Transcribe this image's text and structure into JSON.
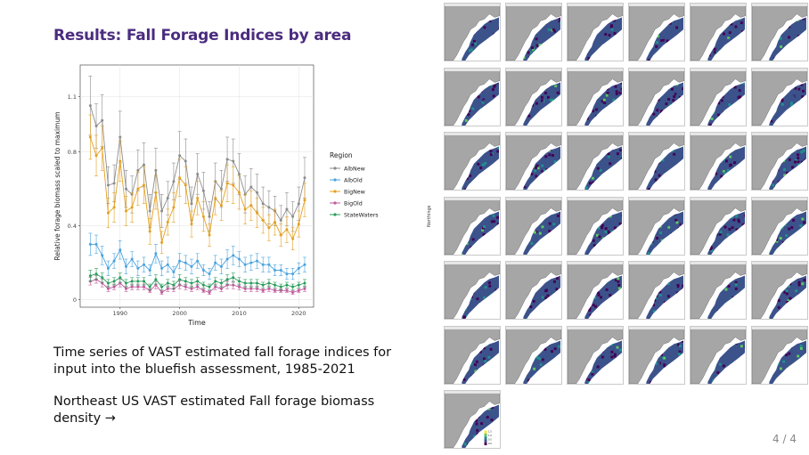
{
  "slide": {
    "title": "Results: Fall Forage Indices by area",
    "description_1": "Time series of VAST estimated fall forage indices for input into the bluefish assessment, 1985-2021",
    "description_2": "Northeast US VAST estimated Fall forage biomass density →",
    "page_indicator": "4 / 4"
  },
  "map_grid": {
    "y_axis_label": "Northings",
    "panel_count": 37,
    "columns": 6,
    "land_color": "#a6a6a6",
    "colorscale": [
      "#440154",
      "#3b528b",
      "#21908d",
      "#5dc963",
      "#fde725"
    ],
    "legend_ticks": [
      "1.5",
      "1.0",
      "0.5",
      "0.0"
    ]
  },
  "chart_data": {
    "type": "line",
    "xlabel": "Time",
    "ylabel": "Relative forage biomass scaled to maximum",
    "x": [
      1985,
      1986,
      1987,
      1988,
      1989,
      1990,
      1991,
      1992,
      1993,
      1994,
      1995,
      1996,
      1997,
      1998,
      1999,
      2000,
      2001,
      2002,
      2003,
      2004,
      2005,
      2006,
      2007,
      2008,
      2009,
      2010,
      2011,
      2012,
      2013,
      2014,
      2015,
      2016,
      2017,
      2018,
      2019,
      2020,
      2021
    ],
    "xticks": [
      1990,
      2000,
      2010,
      2020
    ],
    "yticks": [
      0,
      0.4,
      0.8,
      1.1
    ],
    "ylim": [
      -0.04,
      1.27
    ],
    "xlim": [
      1983.3,
      2022.5
    ],
    "legend_title": "Region",
    "legend_position": "right",
    "grid": true,
    "series": [
      {
        "name": "AlbNew",
        "color": "#8c8c8c",
        "values": [
          1.05,
          0.94,
          0.97,
          0.62,
          0.63,
          0.88,
          0.6,
          0.57,
          0.7,
          0.73,
          0.48,
          0.7,
          0.48,
          0.55,
          0.64,
          0.78,
          0.75,
          0.52,
          0.68,
          0.59,
          0.45,
          0.64,
          0.6,
          0.76,
          0.75,
          0.68,
          0.57,
          0.61,
          0.58,
          0.52,
          0.5,
          0.48,
          0.43,
          0.49,
          0.45,
          0.52,
          0.66
        ],
        "err": [
          0.16,
          0.12,
          0.14,
          0.1,
          0.1,
          0.14,
          0.1,
          0.1,
          0.11,
          0.12,
          0.09,
          0.12,
          0.09,
          0.09,
          0.1,
          0.13,
          0.12,
          0.09,
          0.11,
          0.1,
          0.08,
          0.1,
          0.1,
          0.12,
          0.12,
          0.11,
          0.1,
          0.1,
          0.1,
          0.09,
          0.09,
          0.08,
          0.08,
          0.09,
          0.08,
          0.09,
          0.11
        ]
      },
      {
        "name": "AlbOld",
        "color": "#4aa3df",
        "values": [
          0.3,
          0.3,
          0.24,
          0.17,
          0.21,
          0.27,
          0.18,
          0.22,
          0.17,
          0.19,
          0.16,
          0.25,
          0.17,
          0.19,
          0.15,
          0.21,
          0.2,
          0.18,
          0.21,
          0.16,
          0.14,
          0.2,
          0.18,
          0.22,
          0.24,
          0.22,
          0.19,
          0.2,
          0.21,
          0.19,
          0.19,
          0.16,
          0.16,
          0.14,
          0.14,
          0.17,
          0.19
        ],
        "err": [
          0.06,
          0.05,
          0.05,
          0.04,
          0.04,
          0.05,
          0.04,
          0.04,
          0.04,
          0.04,
          0.03,
          0.05,
          0.04,
          0.04,
          0.03,
          0.04,
          0.04,
          0.04,
          0.04,
          0.03,
          0.03,
          0.04,
          0.04,
          0.05,
          0.05,
          0.04,
          0.04,
          0.04,
          0.04,
          0.04,
          0.04,
          0.03,
          0.03,
          0.03,
          0.03,
          0.03,
          0.04
        ]
      },
      {
        "name": "BigNew",
        "color": "#e3a020",
        "values": [
          0.88,
          0.78,
          0.82,
          0.47,
          0.5,
          0.75,
          0.48,
          0.5,
          0.6,
          0.62,
          0.37,
          0.58,
          0.31,
          0.42,
          0.5,
          0.66,
          0.62,
          0.41,
          0.55,
          0.45,
          0.35,
          0.55,
          0.51,
          0.63,
          0.62,
          0.58,
          0.49,
          0.51,
          0.47,
          0.43,
          0.39,
          0.42,
          0.35,
          0.38,
          0.33,
          0.41,
          0.54
        ],
        "err": [
          0.12,
          0.11,
          0.12,
          0.08,
          0.08,
          0.11,
          0.08,
          0.08,
          0.09,
          0.1,
          0.07,
          0.09,
          0.06,
          0.07,
          0.08,
          0.1,
          0.1,
          0.07,
          0.09,
          0.08,
          0.06,
          0.09,
          0.08,
          0.1,
          0.1,
          0.09,
          0.08,
          0.08,
          0.08,
          0.07,
          0.07,
          0.07,
          0.06,
          0.07,
          0.06,
          0.07,
          0.09
        ]
      },
      {
        "name": "BigOld",
        "color": "#c05a9b",
        "values": [
          0.1,
          0.11,
          0.09,
          0.06,
          0.07,
          0.09,
          0.06,
          0.07,
          0.07,
          0.07,
          0.05,
          0.08,
          0.04,
          0.06,
          0.06,
          0.08,
          0.07,
          0.06,
          0.07,
          0.05,
          0.04,
          0.07,
          0.06,
          0.08,
          0.08,
          0.07,
          0.06,
          0.06,
          0.06,
          0.05,
          0.06,
          0.05,
          0.05,
          0.05,
          0.04,
          0.05,
          0.06
        ],
        "err": [
          0.02,
          0.02,
          0.02,
          0.015,
          0.015,
          0.02,
          0.015,
          0.015,
          0.015,
          0.015,
          0.01,
          0.02,
          0.01,
          0.015,
          0.015,
          0.02,
          0.015,
          0.015,
          0.015,
          0.01,
          0.01,
          0.015,
          0.015,
          0.02,
          0.02,
          0.015,
          0.015,
          0.015,
          0.015,
          0.01,
          0.015,
          0.01,
          0.01,
          0.01,
          0.01,
          0.01,
          0.015
        ]
      },
      {
        "name": "StateWaters",
        "color": "#2a9d5c",
        "values": [
          0.13,
          0.14,
          0.12,
          0.09,
          0.1,
          0.12,
          0.09,
          0.1,
          0.1,
          0.1,
          0.07,
          0.11,
          0.07,
          0.09,
          0.08,
          0.11,
          0.1,
          0.09,
          0.1,
          0.08,
          0.07,
          0.1,
          0.09,
          0.11,
          0.12,
          0.1,
          0.09,
          0.09,
          0.09,
          0.08,
          0.09,
          0.08,
          0.07,
          0.08,
          0.07,
          0.08,
          0.09
        ],
        "err": [
          0.03,
          0.03,
          0.025,
          0.02,
          0.02,
          0.025,
          0.02,
          0.02,
          0.02,
          0.02,
          0.015,
          0.025,
          0.015,
          0.02,
          0.02,
          0.025,
          0.02,
          0.02,
          0.02,
          0.015,
          0.015,
          0.02,
          0.02,
          0.025,
          0.025,
          0.02,
          0.02,
          0.02,
          0.02,
          0.015,
          0.02,
          0.015,
          0.015,
          0.015,
          0.015,
          0.015,
          0.02
        ]
      }
    ]
  }
}
